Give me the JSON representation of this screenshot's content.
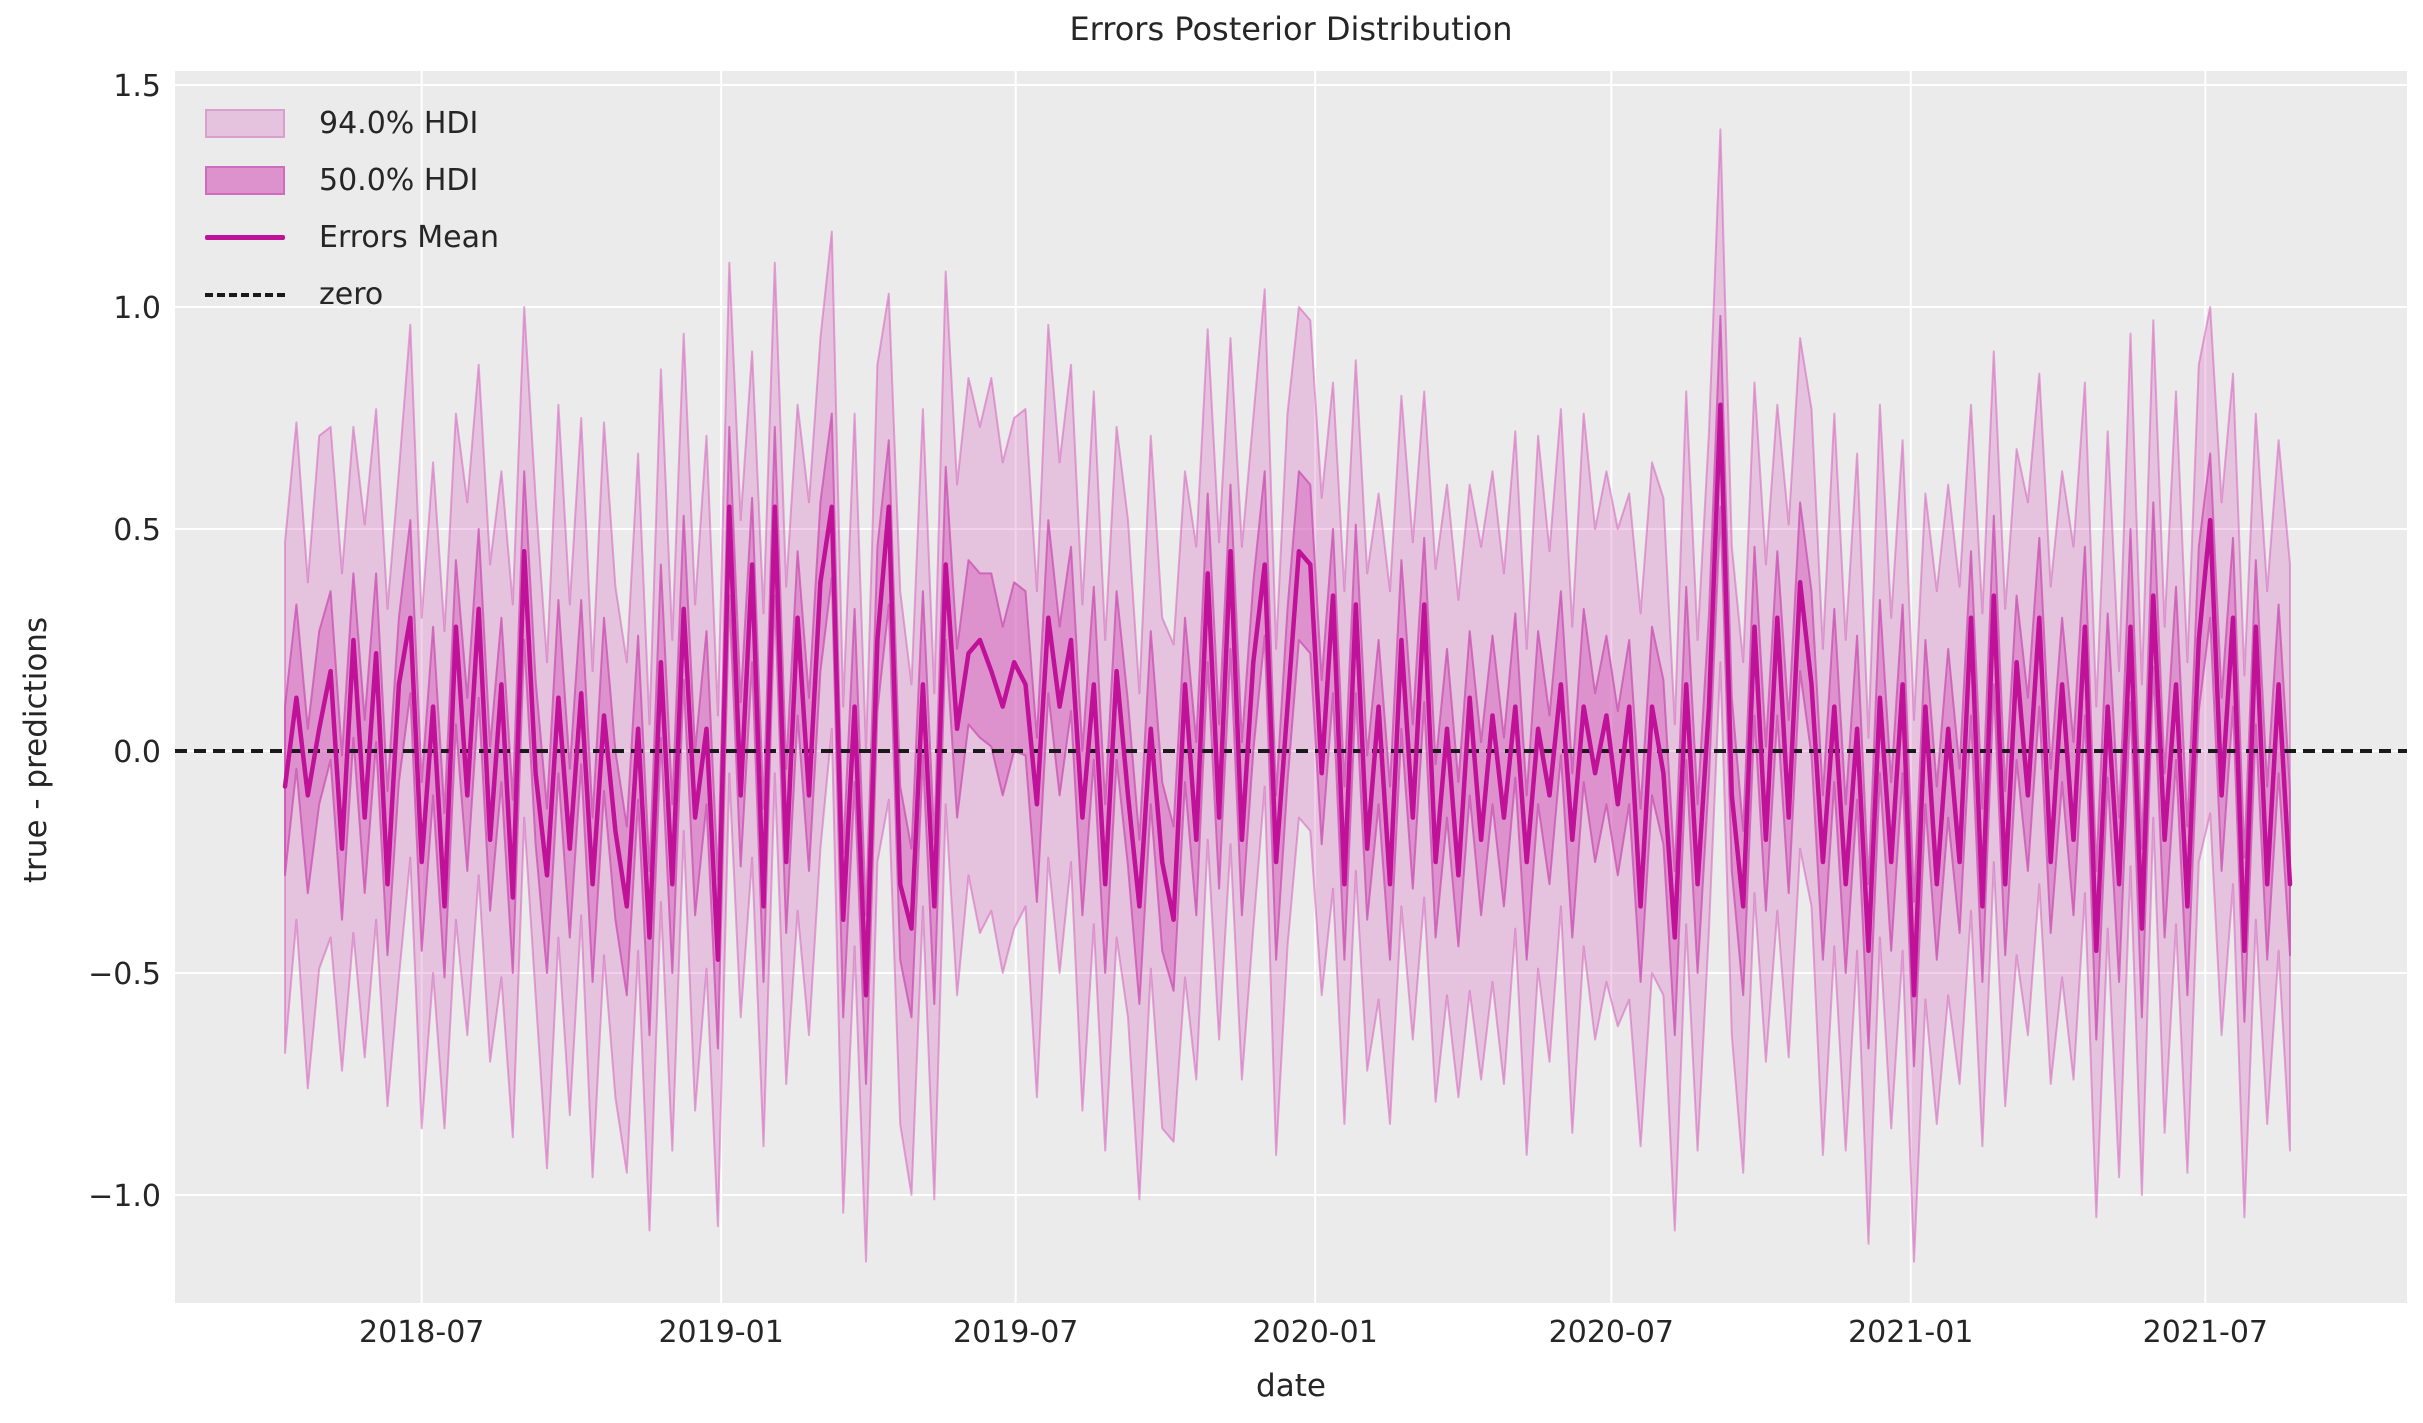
{
  "title": "Errors Posterior Distribution",
  "xlabel": "date",
  "ylabel": "true - predictions",
  "legend": {
    "hdi94": "94.0% HDI",
    "hdi50": "50.0% HDI",
    "mean": "Errors Mean",
    "zero": "zero"
  },
  "colors": {
    "band_base": "#d662bd",
    "band94_edge": "#d193c6",
    "band50_edge": "#c94fb2",
    "mean_line": "#c01299",
    "zero_line": "#1a1a1a",
    "plot_bg": "#ebebeb",
    "grid": "#ffffff",
    "text": "#262626"
  },
  "chart_data": {
    "type": "line",
    "title": "Errors Posterior Distribution",
    "xlabel": "date",
    "ylabel": "true - predictions",
    "legend_entries": [
      "94.0% HDI",
      "50.0% HDI",
      "Errors Mean",
      "zero"
    ],
    "legend_position": "upper left",
    "grid": true,
    "x_start": "2018-04-08",
    "x_end": "2021-08-22",
    "x_step_days": 7,
    "n_points": 177,
    "ylim": [
      -1.24,
      1.53
    ],
    "yticks": [
      {
        "label": "1.5",
        "value": 1.5
      },
      {
        "label": "1.0",
        "value": 1.0
      },
      {
        "label": "0.5",
        "value": 0.5
      },
      {
        "label": "0.0",
        "value": 0.0
      },
      {
        "label": "−0.5",
        "value": -0.5
      },
      {
        "label": "−1.0",
        "value": -1.0
      }
    ],
    "xticks": [
      {
        "label": "2018-07",
        "day": 84
      },
      {
        "label": "2019-01",
        "day": 268
      },
      {
        "label": "2019-07",
        "day": 449
      },
      {
        "label": "2020-01",
        "day": 633
      },
      {
        "label": "2020-07",
        "day": 815
      },
      {
        "label": "2021-01",
        "day": 999
      },
      {
        "label": "2021-07",
        "day": 1180
      }
    ],
    "zero_line_value": 0.0,
    "series": {
      "mean": [
        -0.08,
        0.12,
        -0.1,
        0.05,
        0.18,
        -0.22,
        0.25,
        -0.15,
        0.22,
        -0.3,
        0.15,
        0.3,
        -0.25,
        0.1,
        -0.35,
        0.28,
        -0.1,
        0.32,
        -0.2,
        0.15,
        -0.33,
        0.45,
        -0.05,
        -0.28,
        0.12,
        -0.22,
        0.13,
        -0.3,
        0.08,
        -0.18,
        -0.35,
        0.05,
        -0.42,
        0.2,
        -0.3,
        0.32,
        -0.15,
        0.05,
        -0.47,
        0.55,
        -0.1,
        0.42,
        -0.35,
        0.55,
        -0.25,
        0.3,
        -0.1,
        0.38,
        0.55,
        -0.38,
        0.1,
        -0.55,
        0.25,
        0.55,
        -0.3,
        -0.4,
        0.15,
        -0.35,
        0.42,
        0.05,
        0.22,
        0.25,
        0.18,
        0.1,
        0.2,
        0.15,
        -0.12,
        0.3,
        0.1,
        0.25,
        -0.15,
        0.15,
        -0.3,
        0.18,
        -0.1,
        -0.35,
        0.05,
        -0.25,
        -0.38,
        0.15,
        -0.2,
        0.4,
        -0.15,
        0.45,
        -0.2,
        0.2,
        0.42,
        -0.25,
        0.1,
        0.45,
        0.42,
        -0.05,
        0.35,
        -0.3,
        0.33,
        -0.22,
        0.1,
        -0.3,
        0.25,
        -0.15,
        0.33,
        -0.25,
        0.05,
        -0.28,
        0.12,
        -0.2,
        0.08,
        -0.15,
        0.1,
        -0.25,
        0.05,
        -0.1,
        0.15,
        -0.2,
        0.1,
        -0.05,
        0.08,
        -0.12,
        0.1,
        -0.35,
        0.1,
        -0.05,
        -0.42,
        0.15,
        -0.3,
        0.1,
        0.78,
        -0.1,
        -0.35,
        0.28,
        -0.2,
        0.3,
        -0.15,
        0.38,
        0.15,
        -0.25,
        0.1,
        -0.3,
        0.05,
        -0.45,
        0.12,
        -0.25,
        0.15,
        -0.55,
        0.1,
        -0.3,
        0.05,
        -0.25,
        0.3,
        -0.35,
        0.35,
        -0.3,
        0.2,
        -0.1,
        0.3,
        -0.25,
        0.15,
        -0.2,
        0.28,
        -0.45,
        0.1,
        -0.3,
        0.28,
        -0.4,
        0.35,
        -0.2,
        0.15,
        -0.35,
        0.25,
        0.52,
        -0.1,
        0.3,
        -0.45,
        0.28,
        -0.3,
        0.15,
        -0.3
      ],
      "hdi94_upper": [
        0.47,
        0.74,
        0.38,
        0.71,
        0.73,
        0.4,
        0.73,
        0.51,
        0.77,
        0.32,
        0.63,
        0.96,
        0.3,
        0.65,
        0.27,
        0.76,
        0.56,
        0.87,
        0.42,
        0.63,
        0.33,
        1.0,
        0.57,
        0.2,
        0.78,
        0.33,
        0.75,
        0.18,
        0.74,
        0.37,
        0.2,
        0.67,
        0.06,
        0.86,
        0.25,
        0.94,
        0.33,
        0.71,
        0.08,
        1.1,
        0.52,
        0.9,
        0.31,
        1.1,
        0.37,
        0.78,
        0.56,
        0.93,
        1.17,
        0.1,
        0.76,
        0.0,
        0.87,
        1.03,
        0.36,
        0.15,
        0.77,
        0.13,
        1.08,
        0.6,
        0.84,
        0.73,
        0.84,
        0.65,
        0.75,
        0.77,
        0.36,
        0.96,
        0.65,
        0.87,
        0.33,
        0.81,
        0.25,
        0.73,
        0.52,
        0.13,
        0.71,
        0.3,
        0.24,
        0.63,
        0.46,
        0.95,
        0.47,
        0.93,
        0.46,
        0.75,
        1.04,
        0.23,
        0.76,
        1.0,
        0.97,
        0.57,
        0.83,
        0.36,
        0.88,
        0.4,
        0.58,
        0.36,
        0.8,
        0.47,
        0.81,
        0.41,
        0.6,
        0.34,
        0.6,
        0.46,
        0.63,
        0.4,
        0.72,
        0.23,
        0.71,
        0.45,
        0.77,
        0.28,
        0.76,
        0.5,
        0.63,
        0.5,
        0.58,
        0.31,
        0.65,
        0.57,
        0.06,
        0.81,
        0.25,
        0.72,
        1.4,
        0.46,
        0.2,
        0.83,
        0.42,
        0.78,
        0.51,
        0.93,
        0.77,
        0.23,
        0.76,
        0.25,
        0.67,
        0.03,
        0.78,
        0.3,
        0.7,
        0.07,
        0.58,
        0.36,
        0.6,
        0.37,
        0.78,
        0.31,
        0.9,
        0.32,
        0.68,
        0.56,
        0.85,
        0.37,
        0.63,
        0.46,
        0.83,
        0.1,
        0.72,
        0.18,
        0.94,
        0.15,
        0.97,
        0.28,
        0.81,
        0.2,
        0.87,
        1.0,
        0.56,
        0.85,
        0.17,
        0.76,
        0.36,
        0.7,
        0.42
      ],
      "hdi94_lower": [
        -0.68,
        -0.38,
        -0.76,
        -0.49,
        -0.42,
        -0.72,
        -0.41,
        -0.69,
        -0.38,
        -0.8,
        -0.51,
        -0.24,
        -0.85,
        -0.5,
        -0.85,
        -0.38,
        -0.64,
        -0.28,
        -0.7,
        -0.51,
        -0.87,
        -0.15,
        -0.55,
        -0.94,
        -0.42,
        -0.82,
        -0.37,
        -0.96,
        -0.46,
        -0.78,
        -0.95,
        -0.45,
        -1.08,
        -0.34,
        -0.9,
        -0.18,
        -0.81,
        -0.49,
        -1.07,
        -0.05,
        -0.6,
        -0.24,
        -0.89,
        -0.05,
        -0.75,
        -0.36,
        -0.64,
        -0.22,
        0.05,
        -1.04,
        -0.44,
        -1.15,
        -0.25,
        -0.11,
        -0.84,
        -1.0,
        -0.35,
        -1.01,
        -0.12,
        -0.55,
        -0.28,
        -0.41,
        -0.36,
        -0.5,
        -0.4,
        -0.35,
        -0.78,
        -0.24,
        -0.5,
        -0.25,
        -0.81,
        -0.39,
        -0.9,
        -0.42,
        -0.6,
        -1.01,
        -0.49,
        -0.85,
        -0.88,
        -0.51,
        -0.74,
        -0.2,
        -0.65,
        -0.21,
        -0.74,
        -0.4,
        -0.08,
        -0.91,
        -0.44,
        -0.15,
        -0.18,
        -0.55,
        -0.31,
        -0.84,
        -0.27,
        -0.72,
        -0.56,
        -0.84,
        -0.35,
        -0.65,
        -0.33,
        -0.79,
        -0.55,
        -0.78,
        -0.54,
        -0.74,
        -0.52,
        -0.75,
        -0.4,
        -0.91,
        -0.49,
        -0.7,
        -0.35,
        -0.86,
        -0.44,
        -0.65,
        -0.52,
        -0.62,
        -0.56,
        -0.89,
        -0.5,
        -0.55,
        -1.08,
        -0.39,
        -0.9,
        -0.4,
        0.2,
        -0.64,
        -0.95,
        -0.32,
        -0.7,
        -0.36,
        -0.69,
        -0.22,
        -0.35,
        -0.91,
        -0.44,
        -0.9,
        -0.45,
        -1.11,
        -0.42,
        -0.85,
        -0.45,
        -1.15,
        -0.56,
        -0.84,
        -0.55,
        -0.75,
        -0.36,
        -0.89,
        -0.25,
        -0.8,
        -0.46,
        -0.64,
        -0.3,
        -0.75,
        -0.51,
        -0.74,
        -0.32,
        -1.05,
        -0.4,
        -0.96,
        -0.26,
        -1.0,
        -0.15,
        -0.86,
        -0.39,
        -0.95,
        -0.25,
        -0.14,
        -0.64,
        -0.3,
        -1.05,
        -0.38,
        -0.84,
        -0.45,
        -0.9
      ],
      "hdi50_upper": [
        0.1,
        0.33,
        0.05,
        0.27,
        0.36,
        -0.01,
        0.4,
        0.07,
        0.4,
        -0.09,
        0.3,
        0.52,
        -0.07,
        0.28,
        -0.14,
        0.43,
        0.12,
        0.5,
        0.01,
        0.3,
        -0.11,
        0.63,
        0.16,
        -0.13,
        0.34,
        -0.04,
        0.34,
        -0.15,
        0.3,
        0.0,
        -0.17,
        0.26,
        -0.27,
        0.42,
        -0.12,
        0.53,
        0.0,
        0.27,
        -0.29,
        0.73,
        0.11,
        0.57,
        -0.13,
        0.73,
        -0.04,
        0.45,
        0.12,
        0.56,
        0.76,
        -0.23,
        0.32,
        -0.37,
        0.46,
        0.7,
        -0.08,
        -0.22,
        0.36,
        -0.2,
        0.64,
        0.23,
        0.43,
        0.4,
        0.4,
        0.28,
        0.38,
        0.36,
        0.03,
        0.52,
        0.28,
        0.46,
        0.0,
        0.37,
        -0.12,
        0.36,
        0.11,
        -0.2,
        0.27,
        -0.07,
        -0.17,
        0.3,
        0.02,
        0.58,
        0.06,
        0.6,
        0.02,
        0.38,
        0.63,
        -0.1,
        0.32,
        0.63,
        0.6,
        0.16,
        0.5,
        -0.08,
        0.51,
        -0.01,
        0.25,
        -0.08,
        0.43,
        0.06,
        0.48,
        -0.03,
        0.23,
        -0.07,
        0.27,
        0.02,
        0.26,
        0.03,
        0.31,
        -0.1,
        0.27,
        0.08,
        0.36,
        -0.05,
        0.32,
        0.13,
        0.26,
        0.09,
        0.25,
        -0.13,
        0.28,
        0.16,
        -0.27,
        0.37,
        -0.12,
        0.31,
        0.98,
        0.12,
        -0.18,
        0.46,
        0.01,
        0.45,
        0.07,
        0.56,
        0.36,
        -0.1,
        0.32,
        -0.12,
        0.26,
        -0.3,
        0.34,
        -0.07,
        0.33,
        -0.34,
        0.25,
        -0.08,
        0.23,
        -0.04,
        0.45,
        -0.13,
        0.53,
        -0.09,
        0.35,
        0.12,
        0.48,
        -0.04,
        0.3,
        0.02,
        0.46,
        -0.27,
        0.31,
        -0.15,
        0.5,
        -0.22,
        0.56,
        -0.05,
        0.37,
        -0.17,
        0.46,
        0.67,
        0.12,
        0.48,
        -0.24,
        0.43,
        -0.08,
        0.33,
        -0.09
      ],
      "hdi50_lower": [
        -0.28,
        -0.04,
        -0.32,
        -0.12,
        -0.02,
        -0.38,
        0.03,
        -0.32,
        0.02,
        -0.46,
        -0.07,
        0.13,
        -0.45,
        -0.1,
        -0.51,
        0.06,
        -0.27,
        0.12,
        -0.36,
        -0.07,
        -0.5,
        0.25,
        -0.21,
        -0.5,
        -0.05,
        -0.42,
        -0.03,
        -0.52,
        -0.09,
        -0.38,
        -0.55,
        -0.11,
        -0.64,
        0.03,
        -0.5,
        0.16,
        -0.37,
        -0.12,
        -0.67,
        0.35,
        -0.26,
        0.2,
        -0.52,
        0.35,
        -0.41,
        0.08,
        -0.27,
        0.18,
        0.39,
        -0.6,
        -0.07,
        -0.75,
        0.09,
        0.33,
        -0.47,
        -0.6,
        -0.01,
        -0.57,
        0.25,
        -0.15,
        0.06,
        0.03,
        0.01,
        -0.1,
        0.0,
        -0.01,
        -0.34,
        0.13,
        -0.1,
        0.09,
        -0.37,
        -0.02,
        -0.5,
        -0.02,
        -0.26,
        -0.57,
        -0.12,
        -0.45,
        -0.54,
        -0.07,
        -0.37,
        0.2,
        -0.31,
        0.23,
        -0.37,
        0.0,
        0.26,
        -0.47,
        -0.07,
        0.25,
        0.22,
        -0.21,
        0.13,
        -0.47,
        0.13,
        -0.38,
        -0.12,
        -0.47,
        0.05,
        -0.31,
        0.11,
        -0.42,
        -0.15,
        -0.44,
        -0.1,
        -0.37,
        -0.12,
        -0.35,
        -0.06,
        -0.47,
        -0.12,
        -0.3,
        -0.01,
        -0.42,
        -0.07,
        -0.25,
        -0.12,
        -0.28,
        -0.12,
        -0.52,
        -0.1,
        -0.21,
        -0.64,
        -0.02,
        -0.5,
        -0.06,
        0.55,
        -0.27,
        -0.55,
        0.08,
        -0.36,
        0.08,
        -0.32,
        0.18,
        -0.01,
        -0.47,
        -0.07,
        -0.5,
        -0.11,
        -0.67,
        -0.05,
        -0.45,
        -0.05,
        -0.71,
        -0.12,
        -0.47,
        -0.15,
        -0.41,
        0.08,
        -0.52,
        0.15,
        -0.46,
        -0.02,
        -0.27,
        0.1,
        -0.41,
        -0.07,
        -0.37,
        0.08,
        -0.65,
        -0.06,
        -0.52,
        0.11,
        -0.6,
        0.19,
        -0.42,
        -0.02,
        -0.55,
        0.09,
        0.3,
        -0.27,
        0.1,
        -0.61,
        0.06,
        -0.47,
        -0.05,
        -0.46
      ]
    }
  }
}
